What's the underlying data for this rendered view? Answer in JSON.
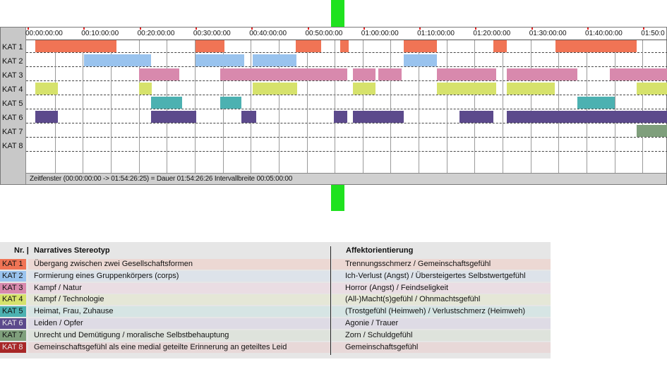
{
  "timeline": {
    "categories": [
      "KAT 1",
      "KAT 2",
      "KAT 3",
      "KAT 4",
      "KAT 5",
      "KAT 6",
      "KAT 7",
      "KAT 8"
    ],
    "ticks": [
      "00:00:00:00",
      "00:10:00:00",
      "00:20:00:00",
      "00:30:00:00",
      "00:40:00:00",
      "00:50:00:00",
      "01:00:00:00",
      "01:10:00:00",
      "01:20:00:00",
      "01:30:00:00",
      "01:40:00:00",
      "01:50:0"
    ],
    "status_text": "Zeitfenster (00:00:00:00 -> 01:54:26:25) = Dauer 01:54:26:26    Intervallbreite 00:05:00:00",
    "colors": {
      "KAT 1": "#f07455",
      "KAT 2": "#99c3ee",
      "KAT 3": "#d889ad",
      "KAT 4": "#d6e26c",
      "KAT 5": "#4cb1b1",
      "KAT 6": "#5c4a8c",
      "KAT 7": "#7f9f7c",
      "KAT 8": "#a82828"
    },
    "segments_minutes": {
      "KAT 1": [
        [
          1.5,
          16
        ],
        [
          30.2,
          35.3
        ],
        [
          48,
          52.6
        ],
        [
          56,
          57.5
        ],
        [
          67.3,
          73.3
        ],
        [
          83.3,
          85.8
        ],
        [
          94.5,
          109
        ]
      ],
      "KAT 2": [
        [
          10.2,
          22.2
        ],
        [
          30.2,
          38.8
        ],
        [
          40.3,
          48.2
        ],
        [
          67.3,
          73.3
        ]
      ],
      "KAT 3": [
        [
          20,
          27.3
        ],
        [
          34.6,
          57.3
        ],
        [
          58.2,
          62.3
        ],
        [
          62.8,
          67
        ],
        [
          73.3,
          83.8
        ],
        [
          85.7,
          98.3
        ],
        [
          104.2,
          114.4
        ]
      ],
      "KAT 4": [
        [
          1.5,
          5.5
        ],
        [
          20,
          22.3
        ],
        [
          40.3,
          48.3
        ],
        [
          58.2,
          62.3
        ],
        [
          73.3,
          83.8
        ],
        [
          85.8,
          94.3
        ],
        [
          109,
          114.4
        ]
      ],
      "KAT 5": [
        [
          22.2,
          27.7
        ],
        [
          34.6,
          38.3
        ],
        [
          98.3,
          105.1
        ]
      ],
      "KAT 6": [
        [
          1.5,
          5.5
        ],
        [
          22.2,
          30.3
        ],
        [
          38.3,
          41
        ],
        [
          54.8,
          57.3
        ],
        [
          58.2,
          67.3
        ],
        [
          77.3,
          83.3
        ],
        [
          85.8,
          114.4
        ]
      ],
      "KAT 7": [
        [
          109,
          114.4
        ]
      ],
      "KAT 8": []
    }
  },
  "legend": {
    "header_nr": "Nr. |",
    "header_stereotyp": "Narratives Stereotyp",
    "header_affekt": "Affektorientierung",
    "rows": [
      {
        "nr": "KAT 1",
        "stereotyp": "Übergang zwischen zwei Gesellschaftsformen",
        "affekt": "Trennungsschmerz / Gemeinschaftsgefühl",
        "color": "#f07455",
        "bg": "#ecd8d3"
      },
      {
        "nr": "KAT 2",
        "stereotyp": "Formierung eines Gruppenkörpers (corps)",
        "affekt": "Ich-Verlust (Angst) / Übersteigertes Selbstwertgefühl",
        "color": "#99c3ee",
        "bg": "#dde3ea"
      },
      {
        "nr": "KAT 3",
        "stereotyp": "Kampf / Natur",
        "affekt": "Horror (Angst) / Feindseligkeit",
        "color": "#d889ad",
        "bg": "#eadde3"
      },
      {
        "nr": "KAT 4",
        "stereotyp": "Kampf / Technologie",
        "affekt": "(All-)Macht(s)gefühl / Ohnmachtsgefühl",
        "color": "#d6e26c",
        "bg": "#e5e7d7"
      },
      {
        "nr": "KAT 5",
        "stereotyp": "Heimat, Frau, Zuhause",
        "affekt": "(Trostgefühl (Heimweh) / Verlustschmerz (Heimweh)",
        "color": "#4cb1b1",
        "bg": "#d6e5e4"
      },
      {
        "nr": "KAT 6",
        "stereotyp": "Leiden / Opfer",
        "affekt": "Agonie / Trauer",
        "color": "#5c4a8c",
        "bg": "#dedbe5"
      },
      {
        "nr": "KAT 7",
        "stereotyp": "Unrecht und Demütigung / moralische Selbstbehauptung",
        "affekt": "Zorn / Schuldgefühl",
        "color": "#7f9f7c",
        "bg": "#dee3dc"
      },
      {
        "nr": "KAT 8",
        "stereotyp": "Gemeinschaftsgefühl als eine medial geteilte Erinnerung an geteiltes Leid",
        "affekt": "Gemeinschaftsgefühl",
        "color": "#a82828",
        "bg": "#e8d8d8"
      }
    ]
  }
}
